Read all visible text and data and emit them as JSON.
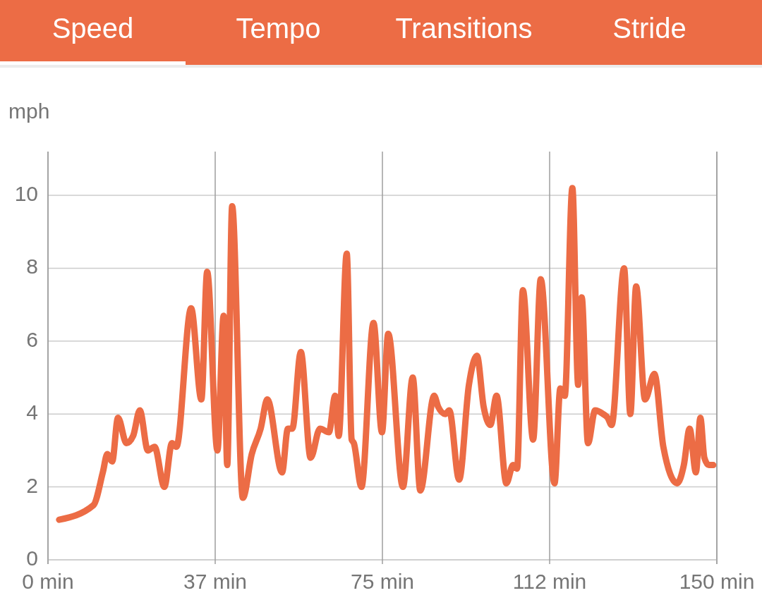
{
  "chart_data": {
    "type": "line",
    "title": "Speed",
    "annotations": [
      "Tempo",
      "Transitions",
      "Stride"
    ],
    "ylabel": "mph",
    "x": [
      2.5,
      10.2,
      12.3,
      13.3,
      14.4,
      15.7,
      17.6,
      19.1,
      20.6,
      22.4,
      23.9,
      26.1,
      27.8,
      28.8,
      32.1,
      34.4,
      35.7,
      38.0,
      39.4,
      40.2,
      41.3,
      43.7,
      45.7,
      47.7,
      49.2,
      52.5,
      53.8,
      54.8,
      56.7,
      58.9,
      61.0,
      63.0,
      64.4,
      65.2,
      67.0,
      68.1,
      68.6,
      70.3,
      73.0,
      74.9,
      76.3,
      79.6,
      81.8,
      83.5,
      86.6,
      87.5,
      89.1,
      90.0,
      92.2,
      94.4,
      96.2,
      97.7,
      99.2,
      100.6,
      102.8,
      104.3,
      105.2,
      106.5,
      108.8,
      110.5,
      113.6,
      114.9,
      115.9,
      117.6,
      118.9,
      119.7,
      121.1,
      122.7,
      124.5,
      125.5,
      126.4,
      129.2,
      130.6,
      131.9,
      133.9,
      136.0,
      138.0,
      141.1,
      142.6,
      143.9,
      145.3,
      146.3,
      147.2,
      148.2,
      149.2
    ],
    "series": [
      {
        "color": "#ec6c45",
        "values": [
          1.1,
          1.5,
          2.4,
          2.9,
          2.7,
          3.9,
          3.2,
          3.4,
          4.1,
          3.0,
          3.1,
          2.0,
          3.2,
          3.1,
          6.9,
          4.4,
          7.9,
          3.0,
          6.7,
          2.6,
          9.7,
          1.7,
          2.9,
          3.6,
          4.4,
          2.4,
          3.6,
          3.6,
          5.7,
          2.8,
          3.6,
          3.5,
          4.5,
          3.4,
          8.4,
          3.3,
          3.2,
          2.0,
          6.5,
          3.5,
          6.2,
          2.0,
          5.0,
          1.9,
          4.5,
          4.2,
          4.0,
          4.1,
          2.2,
          4.8,
          5.6,
          4.2,
          3.7,
          4.5,
          2.1,
          2.6,
          2.5,
          7.4,
          3.3,
          7.7,
          2.1,
          4.7,
          4.5,
          10.2,
          4.8,
          7.2,
          3.2,
          4.1,
          4.0,
          3.9,
          3.7,
          8.0,
          4.0,
          7.5,
          4.4,
          5.1,
          3.1,
          2.1,
          2.6,
          3.6,
          2.4,
          3.9,
          2.8,
          2.6,
          2.6
        ]
      }
    ],
    "xlim": [
      0,
      150
    ],
    "xticks": [
      {
        "value": 0,
        "label": "0 min"
      },
      {
        "value": 37.5,
        "label": "37 min"
      },
      {
        "value": 75,
        "label": "75 min"
      },
      {
        "value": 112.5,
        "label": "112 min"
      },
      {
        "value": 150,
        "label": "150 min"
      }
    ],
    "ylim": [
      0,
      11.2
    ],
    "yticks": [
      0,
      2,
      4,
      6,
      8,
      10
    ],
    "grid": true
  }
}
